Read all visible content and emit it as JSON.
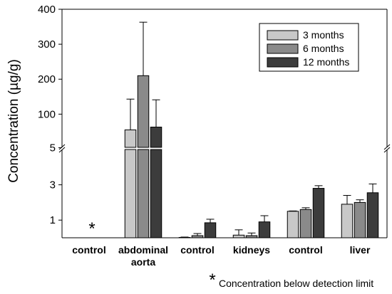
{
  "chart_data": {
    "type": "bar",
    "ylabel": "Concentration (µg/g)",
    "categories": [
      {
        "line1": "control",
        "line2": ""
      },
      {
        "line1": "abdominal",
        "line2": "aorta"
      },
      {
        "line1": "control",
        "line2": ""
      },
      {
        "line1": "kidneys",
        "line2": ""
      },
      {
        "line1": "control",
        "line2": ""
      },
      {
        "line1": "liver",
        "line2": ""
      }
    ],
    "series": [
      {
        "name": "3 months",
        "color": "#c8c8c8",
        "values": [
          null,
          55,
          0.02,
          0.15,
          1.5,
          1.9
        ],
        "errors": [
          null,
          88,
          0.02,
          0.3,
          0.02,
          0.5
        ]
      },
      {
        "name": "6 months",
        "color": "#8a8a8a",
        "values": [
          null,
          210,
          0.12,
          0.12,
          1.6,
          2.0
        ],
        "errors": [
          null,
          153,
          0.12,
          0.15,
          0.1,
          0.15
        ]
      },
      {
        "name": "12 months",
        "color": "#3c3c3c",
        "values": [
          null,
          63,
          0.85,
          0.9,
          2.8,
          2.55
        ],
        "errors": [
          null,
          78,
          0.2,
          0.35,
          0.15,
          0.5
        ]
      }
    ],
    "yticks": [
      "1",
      "3",
      "5",
      "100",
      "200",
      "300",
      "400"
    ],
    "axis_break": {
      "lower": [
        0,
        5
      ],
      "upper": [
        5,
        400
      ]
    },
    "legend_position": "top-right",
    "below_limit_marker": "*",
    "footnote_marker": "*",
    "footnote": "Concentration below detection limit"
  }
}
